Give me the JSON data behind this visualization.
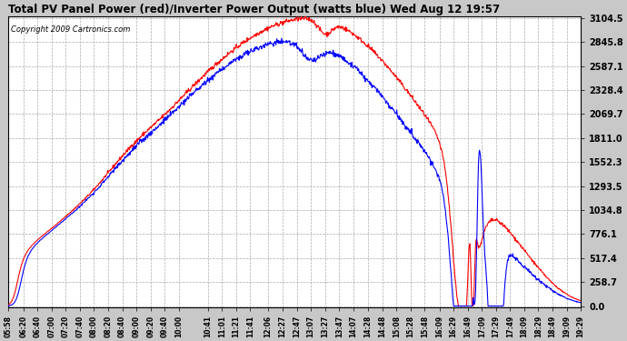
{
  "title": "Total PV Panel Power (red)/Inverter Power Output (watts blue) Wed Aug 12 19:57",
  "copyright": "Copyright 2009 Cartronics.com",
  "bg_color": "#C8C8C8",
  "plot_bg_color": "#FFFFFF",
  "grid_color": "#AAAAAA",
  "line_color_pv": "red",
  "line_color_inv": "blue",
  "yticks": [
    0.0,
    258.7,
    517.4,
    776.1,
    1034.8,
    1293.5,
    1552.3,
    1811.0,
    2069.7,
    2328.4,
    2587.1,
    2845.8,
    3104.5
  ],
  "xtick_labels": [
    "05:58",
    "06:20",
    "06:40",
    "07:00",
    "07:20",
    "07:40",
    "08:00",
    "08:20",
    "08:40",
    "09:00",
    "09:20",
    "09:40",
    "10:00",
    "10:41",
    "11:01",
    "11:21",
    "11:41",
    "12:06",
    "12:27",
    "12:47",
    "13:07",
    "13:27",
    "13:47",
    "14:07",
    "14:28",
    "14:48",
    "15:08",
    "15:28",
    "15:48",
    "16:09",
    "16:29",
    "16:49",
    "17:09",
    "17:29",
    "17:49",
    "18:09",
    "18:29",
    "18:49",
    "19:09",
    "19:29"
  ],
  "ymax": 3104.5,
  "ymin": 0.0
}
